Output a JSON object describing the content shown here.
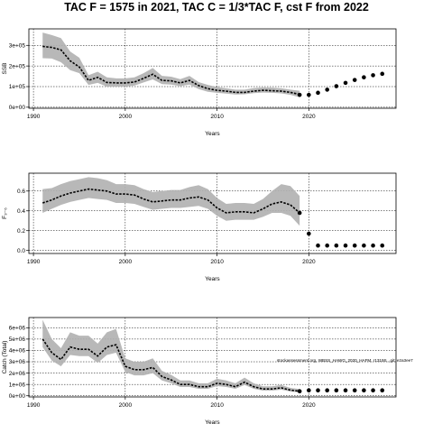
{
  "figure": {
    "title": "TAC F = 1575 in 2021, TAC C = 1/3*TAC F, cst F from 2022",
    "note": "stockassessment.org, WBSS_HAWG_2020_HAFM, r1319S , git: e2a3ee7"
  },
  "chart_data": [
    {
      "type": "line",
      "id": "ssb",
      "ylabel": "SSB",
      "xlabel": "Years",
      "xlim": [
        1989.5,
        2029.5
      ],
      "ylim": [
        -5000,
        380000
      ],
      "xticks": [
        1990,
        2000,
        2010,
        2020
      ],
      "yticks": [
        0,
        100000,
        200000,
        300000
      ],
      "ytick_labels": [
        "0e+00",
        "1e+05",
        "2e+05",
        "3e+05"
      ],
      "grid": true,
      "series": [
        {
          "kind": "estimate",
          "x": [
            1991,
            1992,
            1993,
            1994,
            1995,
            1996,
            1997,
            1998,
            1999,
            2000,
            2001,
            2002,
            2003,
            2004,
            2005,
            2006,
            2007,
            2008,
            2009,
            2010,
            2011,
            2012,
            2013,
            2014,
            2015,
            2016,
            2017,
            2018,
            2019
          ],
          "values": [
            295000,
            290000,
            278000,
            225000,
            195000,
            130000,
            145000,
            120000,
            118000,
            118000,
            122000,
            140000,
            160000,
            130000,
            128000,
            118000,
            130000,
            105000,
            90000,
            82000,
            78000,
            72000,
            72000,
            78000,
            82000,
            80000,
            78000,
            72000,
            62000
          ],
          "lower": [
            238000,
            236000,
            218000,
            180000,
            165000,
            108000,
            118000,
            100000,
            100000,
            100000,
            105000,
            120000,
            135000,
            112000,
            110000,
            102000,
            110000,
            88000,
            75000,
            70000,
            66000,
            62000,
            63000,
            68000,
            71000,
            70000,
            67000,
            60000,
            48000
          ],
          "upper": [
            362000,
            350000,
            335000,
            270000,
            240000,
            155000,
            172000,
            145000,
            140000,
            140000,
            145000,
            165000,
            190000,
            152000,
            148000,
            136000,
            152000,
            122000,
            108000,
            98000,
            92000,
            85000,
            85000,
            93000,
            96000,
            95000,
            92000,
            85000,
            80000
          ]
        },
        {
          "kind": "forecast",
          "x": [
            2019,
            2020,
            2021,
            2022,
            2023,
            2024,
            2025,
            2026,
            2027,
            2028
          ],
          "values": [
            60000,
            60000,
            70000,
            85000,
            102000,
            118000,
            132000,
            145000,
            155000,
            162000
          ]
        }
      ]
    },
    {
      "type": "line",
      "id": "fbar",
      "ylabel": "F₃₋₆",
      "xlabel": "Years",
      "xlim": [
        1989.5,
        2029.5
      ],
      "ylim": [
        -0.03,
        0.78
      ],
      "xticks": [
        1990,
        2000,
        2010,
        2020
      ],
      "yticks": [
        0.0,
        0.2,
        0.4,
        0.6
      ],
      "ytick_labels": [
        "0.0",
        "0.2",
        "0.4",
        "0.6"
      ],
      "grid": true,
      "series": [
        {
          "kind": "estimate",
          "x": [
            1991,
            1992,
            1993,
            1994,
            1995,
            1996,
            1997,
            1998,
            1999,
            2000,
            2001,
            2002,
            2003,
            2004,
            2005,
            2006,
            2007,
            2008,
            2009,
            2010,
            2011,
            2012,
            2013,
            2014,
            2015,
            2016,
            2017,
            2018,
            2019
          ],
          "values": [
            0.48,
            0.51,
            0.55,
            0.58,
            0.6,
            0.62,
            0.61,
            0.6,
            0.57,
            0.57,
            0.56,
            0.52,
            0.49,
            0.5,
            0.51,
            0.51,
            0.53,
            0.54,
            0.51,
            0.43,
            0.38,
            0.39,
            0.39,
            0.38,
            0.42,
            0.47,
            0.49,
            0.46,
            0.38
          ],
          "lower": [
            0.38,
            0.42,
            0.46,
            0.49,
            0.51,
            0.53,
            0.52,
            0.51,
            0.48,
            0.48,
            0.47,
            0.44,
            0.41,
            0.42,
            0.43,
            0.43,
            0.44,
            0.45,
            0.42,
            0.35,
            0.3,
            0.31,
            0.31,
            0.31,
            0.34,
            0.38,
            0.38,
            0.35,
            0.25
          ],
          "upper": [
            0.62,
            0.63,
            0.67,
            0.7,
            0.72,
            0.74,
            0.73,
            0.71,
            0.67,
            0.67,
            0.66,
            0.62,
            0.59,
            0.6,
            0.61,
            0.61,
            0.64,
            0.66,
            0.62,
            0.53,
            0.47,
            0.48,
            0.48,
            0.47,
            0.52,
            0.6,
            0.67,
            0.65,
            0.55
          ]
        },
        {
          "kind": "forecast",
          "x": [
            2019,
            2020,
            2021,
            2022,
            2023,
            2024,
            2025,
            2026,
            2027,
            2028
          ],
          "values": [
            0.38,
            0.17,
            0.05,
            0.05,
            0.05,
            0.05,
            0.05,
            0.05,
            0.05,
            0.05
          ]
        }
      ]
    },
    {
      "type": "line",
      "id": "catch",
      "ylabel": "Catch (Total)",
      "xlabel": "Years",
      "xlim": [
        1989.5,
        2029.5
      ],
      "ylim": [
        -100000,
        6900000
      ],
      "xticks": [
        1990,
        2000,
        2010,
        2020
      ],
      "yticks": [
        0,
        1000000,
        2000000,
        3000000,
        4000000,
        5000000,
        6000000
      ],
      "ytick_labels": [
        "0e+00",
        "1e+06",
        "2e+06",
        "3e+06",
        "4e+06",
        "5e+06",
        "6e+06"
      ],
      "grid": true,
      "series": [
        {
          "kind": "estimate",
          "x": [
            1991,
            1992,
            1993,
            1994,
            1995,
            1996,
            1997,
            1998,
            1999,
            2000,
            2001,
            2002,
            2003,
            2004,
            2005,
            2006,
            2007,
            2008,
            2009,
            2010,
            2011,
            2012,
            2013,
            2014,
            2015,
            2016,
            2017,
            2018,
            2019
          ],
          "values": [
            5000000,
            3800000,
            3200000,
            4300000,
            4100000,
            4100000,
            3500000,
            4300000,
            4500000,
            2600000,
            2300000,
            2300000,
            2500000,
            1700000,
            1400000,
            1000000,
            1000000,
            800000,
            800000,
            1100000,
            1000000,
            800000,
            1200000,
            800000,
            600000,
            600000,
            700000,
            500000,
            400000
          ],
          "lower": [
            4300000,
            3100000,
            2600000,
            3600000,
            3500000,
            3500000,
            2900000,
            3600000,
            3800000,
            2100000,
            1800000,
            1800000,
            2000000,
            1350000,
            1100000,
            780000,
            780000,
            620000,
            620000,
            850000,
            780000,
            620000,
            950000,
            620000,
            460000,
            460000,
            540000,
            380000,
            300000
          ],
          "upper": [
            6700000,
            5000000,
            4200000,
            5600000,
            5300000,
            5300000,
            4600000,
            5600000,
            5900000,
            3300000,
            3000000,
            3000000,
            3300000,
            2200000,
            1850000,
            1350000,
            1350000,
            1100000,
            1100000,
            1500000,
            1350000,
            1100000,
            1600000,
            1100000,
            830000,
            830000,
            950000,
            700000,
            600000
          ]
        },
        {
          "kind": "forecast",
          "x": [
            2019,
            2020,
            2021,
            2022,
            2023,
            2024,
            2025,
            2026,
            2027,
            2028
          ],
          "values": [
            400000,
            480000,
            480000,
            480000,
            480000,
            480000,
            480000,
            480000,
            480000,
            480000
          ]
        }
      ]
    }
  ]
}
